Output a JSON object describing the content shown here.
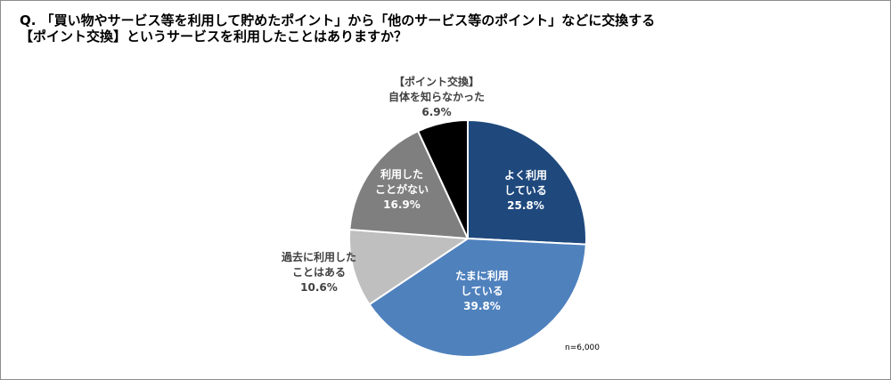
{
  "title": {
    "line1": "Q. 「買い物やサービス等を利用して貯めたポイント」から「他のサービス等のポイント」などに交換する",
    "line2": "【ポイント交換】というサービスを利用したことはありますか？"
  },
  "note": "n=6,000",
  "chart_data": {
    "type": "pie",
    "start_angle_deg": 0,
    "direction": "clockwise",
    "slices": [
      {
        "label_lines": [
          "よく利用",
          "している"
        ],
        "value": 25.8,
        "value_text": "25.8%",
        "color": "#1f497d",
        "label_color": "#ffffff",
        "label_pos": "inside"
      },
      {
        "label_lines": [
          "たまに利用",
          "している"
        ],
        "value": 39.8,
        "value_text": "39.8%",
        "color": "#4f81bd",
        "label_color": "#ffffff",
        "label_pos": "inside"
      },
      {
        "label_lines": [
          "過去に利用した",
          "ことはある"
        ],
        "value": 10.6,
        "value_text": "10.6%",
        "color": "#bfbfbf",
        "label_color": "#404040",
        "label_pos": "outside-left"
      },
      {
        "label_lines": [
          "利用した",
          "ことがない"
        ],
        "value": 16.9,
        "value_text": "16.9%",
        "color": "#7f7f7f",
        "label_color": "#ffffff",
        "label_pos": "inside"
      },
      {
        "label_lines": [
          "【ポイント交換】",
          "自体を知らなかった"
        ],
        "value": 6.9,
        "value_text": "6.9%",
        "color": "#000000",
        "label_color": "#404040",
        "label_pos": "outside-top"
      }
    ]
  }
}
